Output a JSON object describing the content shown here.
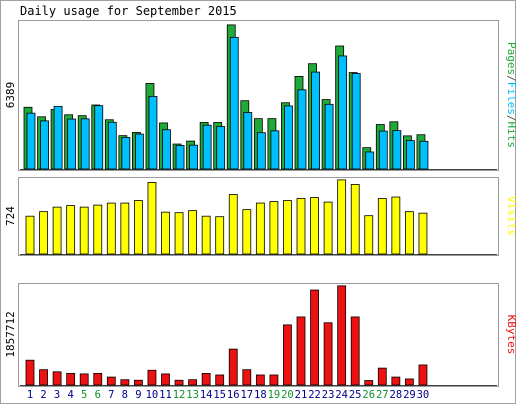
{
  "title": "Daily usage for September 2015",
  "colors": {
    "hits": "#20a838",
    "files": "#00bfff",
    "visits": "#ffff00",
    "kbytes": "#ee1111",
    "weekend": "#109030",
    "weekday": "#00008b",
    "background": "#ffffff",
    "frame": "#888888"
  },
  "chart_data": [
    {
      "type": "bar",
      "title": "Daily usage for September 2015",
      "categories": [
        "1",
        "2",
        "3",
        "4",
        "5",
        "6",
        "7",
        "8",
        "9",
        "10",
        "11",
        "12",
        "13",
        "14",
        "15",
        "16",
        "17",
        "18",
        "19",
        "20",
        "21",
        "22",
        "23",
        "24",
        "25",
        "26",
        "27",
        "28",
        "29",
        "30"
      ],
      "weekend_days": [
        "5",
        "6",
        "12",
        "13",
        "19",
        "20",
        "26",
        "27"
      ],
      "ylabel_value": "6389",
      "ylim": [
        0,
        6389
      ],
      "legend": [
        {
          "text": "Pages",
          "color": "#20a838"
        },
        {
          "text": "/",
          "color": "#555555"
        },
        {
          "text": "Files",
          "color": "#00bfff"
        },
        {
          "text": "/",
          "color": "#555555"
        },
        {
          "text": "Hits",
          "color": "#20a838"
        }
      ],
      "series": [
        {
          "name": "Hits",
          "color": "#20a838",
          "values": [
            2720,
            2300,
            2620,
            2390,
            2350,
            2820,
            2170,
            1470,
            1610,
            3770,
            2030,
            1100,
            1230,
            2050,
            2050,
            6350,
            3010,
            2220,
            2220,
            2920,
            4080,
            4640,
            3060,
            5420,
            4250,
            940,
            1960,
            2080,
            1460,
            1510
          ]
        },
        {
          "name": "Files",
          "color": "#00bfff",
          "values": [
            2460,
            2120,
            2760,
            2200,
            2210,
            2790,
            2060,
            1390,
            1540,
            3200,
            1730,
            1040,
            1050,
            1930,
            1870,
            5800,
            2490,
            1600,
            1680,
            2780,
            3490,
            4270,
            2850,
            4980,
            4210,
            750,
            1670,
            1690,
            1250,
            1220
          ]
        }
      ]
    },
    {
      "type": "bar",
      "categories": [
        "1",
        "2",
        "3",
        "4",
        "5",
        "6",
        "7",
        "8",
        "9",
        "10",
        "11",
        "12",
        "13",
        "14",
        "15",
        "16",
        "17",
        "18",
        "19",
        "20",
        "21",
        "22",
        "23",
        "24",
        "25",
        "26",
        "27",
        "28",
        "29",
        "30"
      ],
      "ylabel_value": "724",
      "ylim": [
        0,
        724
      ],
      "legend": [
        {
          "text": "Visits",
          "color": "#ffff00"
        }
      ],
      "series": [
        {
          "name": "Visits",
          "color": "#ffff00",
          "values": [
            375,
            420,
            465,
            480,
            465,
            485,
            505,
            505,
            530,
            710,
            415,
            410,
            430,
            375,
            370,
            590,
            440,
            505,
            520,
            530,
            550,
            560,
            515,
            735,
            690,
            380,
            550,
            565,
            420,
            405
          ]
        }
      ]
    },
    {
      "type": "bar",
      "categories": [
        "1",
        "2",
        "3",
        "4",
        "5",
        "6",
        "7",
        "8",
        "9",
        "10",
        "11",
        "12",
        "13",
        "14",
        "15",
        "16",
        "17",
        "18",
        "19",
        "20",
        "21",
        "22",
        "23",
        "24",
        "25",
        "26",
        "27",
        "28",
        "29",
        "30"
      ],
      "ylabel_value": "1857712",
      "ylim": [
        0,
        1857712
      ],
      "legend": [
        {
          "text": "KBytes",
          "color": "#ee1111"
        }
      ],
      "series": [
        {
          "name": "KBytes",
          "color": "#ee1111",
          "values": [
            470000,
            290000,
            250000,
            220000,
            210000,
            220000,
            150000,
            100000,
            90000,
            280000,
            210000,
            90000,
            100000,
            220000,
            190000,
            680000,
            290000,
            190000,
            190000,
            1140000,
            1290000,
            1800000,
            1180000,
            1880000,
            1290000,
            85000,
            320000,
            150000,
            115000,
            380000
          ]
        }
      ]
    }
  ]
}
